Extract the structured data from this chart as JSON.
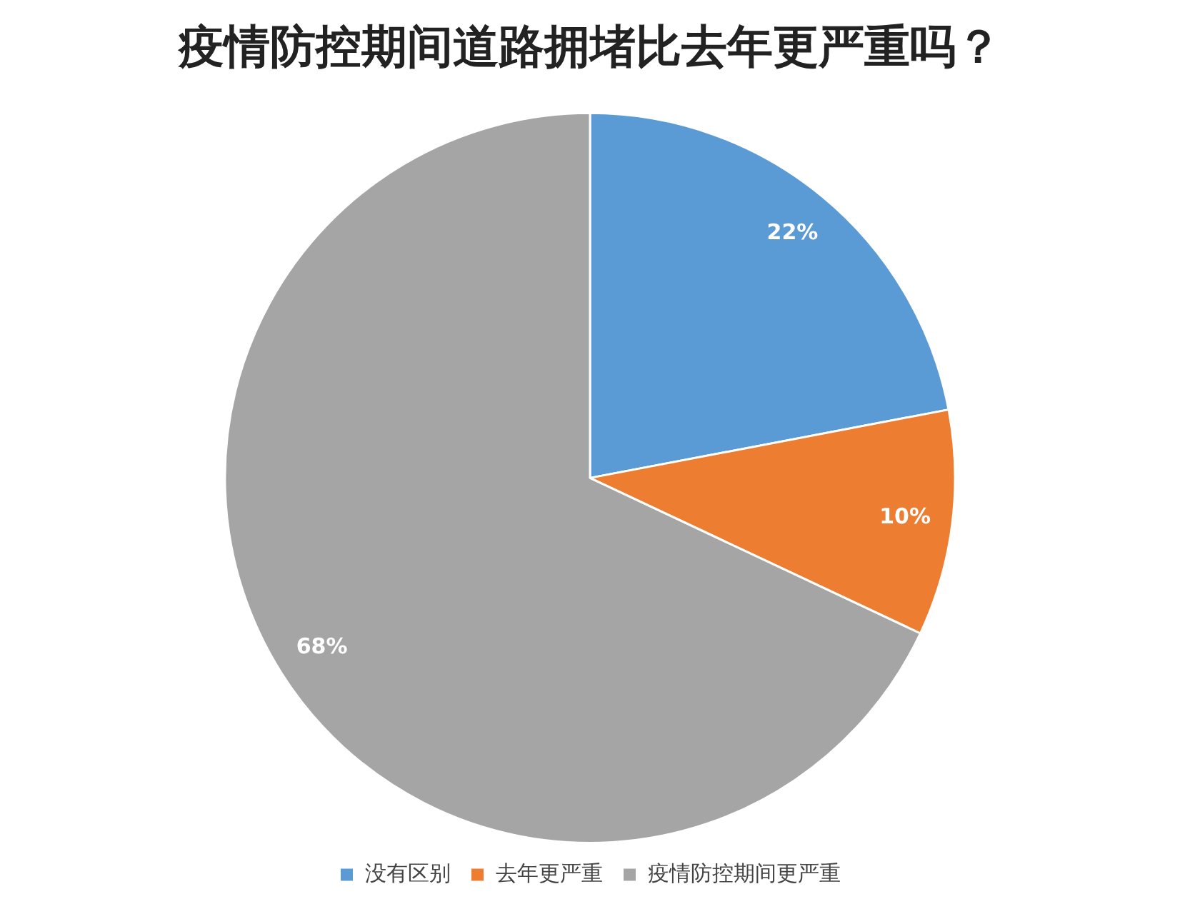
{
  "chart_data": {
    "type": "pie",
    "title": "疫情防控期间道路拥堵比去年更严重吗？",
    "categories": [
      "没有区别",
      "去年更严重",
      "疫情防控期间更严重"
    ],
    "values": [
      22,
      10,
      68
    ],
    "colors": [
      "#5b9bd5",
      "#ed7d31",
      "#a5a5a5"
    ],
    "value_labels": [
      "22%",
      "10%",
      "68%"
    ],
    "legend": "bottom"
  }
}
